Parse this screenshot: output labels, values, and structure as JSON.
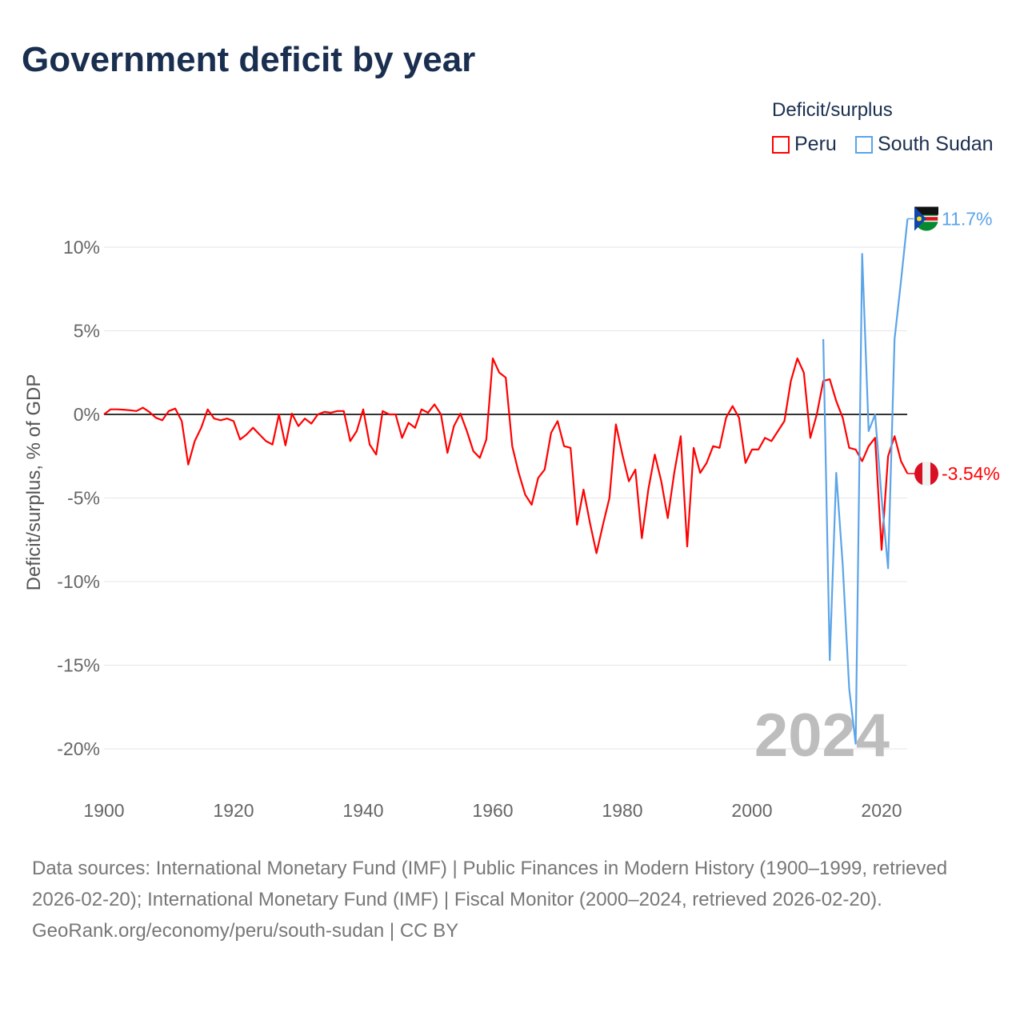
{
  "chart_data": {
    "type": "line",
    "title": "Government deficit by year",
    "ylabel": "Deficit/surplus, % of GDP",
    "xlabel": "",
    "xlim": [
      1900,
      2024
    ],
    "ylim": [
      -20,
      12
    ],
    "x_ticks": [
      1900,
      1920,
      1940,
      1960,
      1980,
      2000,
      2020
    ],
    "y_ticks": [
      10,
      5,
      0,
      -5,
      -10,
      -15,
      -20
    ],
    "y_tick_labels": [
      "10%",
      "5%",
      "0%",
      "-5%",
      "-10%",
      "-15%",
      "-20%"
    ],
    "x_tick_labels": [
      "1900",
      "1920",
      "1940",
      "1960",
      "1980",
      "2000",
      "2020"
    ],
    "grid": true,
    "legend_title": "Deficit/surplus",
    "legend_position": "top-right",
    "year_watermark": "2024",
    "series": [
      {
        "name": "Peru",
        "color": "#ff0000",
        "start_year": 1900,
        "end_label": "-3.54%",
        "values": [
          0,
          0.3,
          0.3,
          0.28,
          0.25,
          0.2,
          0.4,
          0.15,
          -0.2,
          -0.35,
          0.2,
          0.35,
          -0.4,
          -3.0,
          -1.6,
          -0.8,
          0.3,
          -0.25,
          -0.35,
          -0.25,
          -0.4,
          -1.5,
          -1.2,
          -0.8,
          -1.2,
          -1.6,
          -1.8,
          0.0,
          -1.85,
          0.05,
          -0.7,
          -0.25,
          -0.55,
          0.0,
          0.15,
          0.1,
          0.2,
          0.2,
          -1.6,
          -1.0,
          0.3,
          -1.8,
          -2.4,
          0.2,
          0.0,
          0.0,
          -1.4,
          -0.5,
          -0.8,
          0.3,
          0.1,
          0.6,
          0.0,
          -2.3,
          -0.7,
          0.05,
          -1.0,
          -2.2,
          -2.6,
          -1.5,
          3.35,
          2.5,
          2.2,
          -1.9,
          -3.5,
          -4.8,
          -5.4,
          -3.8,
          -3.3,
          -1.1,
          -0.4,
          -1.9,
          -2.0,
          -6.6,
          -4.5,
          -6.5,
          -8.3,
          -6.6,
          -5.0,
          -0.6,
          -2.4,
          -4.0,
          -3.3,
          -7.4,
          -4.5,
          -2.4,
          -4.0,
          -6.2,
          -3.5,
          -1.3,
          -7.9,
          -2.0,
          -3.5,
          -2.9,
          -1.9,
          -2.0,
          -0.2,
          0.5,
          -0.2,
          -2.9,
          -2.1,
          -2.1,
          -1.4,
          -1.6,
          -1.0,
          -0.4,
          2.0,
          3.35,
          2.5,
          -1.4,
          0.0,
          2.0,
          2.1,
          0.8,
          -0.2,
          -2.0,
          -2.1,
          -2.8,
          -1.9,
          -1.4,
          -8.1,
          -2.5,
          -1.3,
          -2.8,
          -3.54
        ]
      },
      {
        "name": "South Sudan",
        "color": "#5ba4e8",
        "start_year": 2011,
        "end_label": "11.7%",
        "values": [
          4.5,
          -14.7,
          -3.5,
          -9.0,
          -16.4,
          -19.7,
          9.6,
          -1.0,
          0.0,
          -5.0,
          -9.2,
          4.5,
          8.0,
          11.7
        ]
      }
    ]
  },
  "footer": {
    "sources": "Data sources: International Monetary Fund (IMF) | Public Finances in Modern History (1900–1999, retrieved 2026-02-20); International Monetary Fund (IMF) | Fiscal Monitor (2000–2024, retrieved 2026-02-20).",
    "credit": "GeoRank.org/economy/peru/south-sudan | CC BY"
  }
}
